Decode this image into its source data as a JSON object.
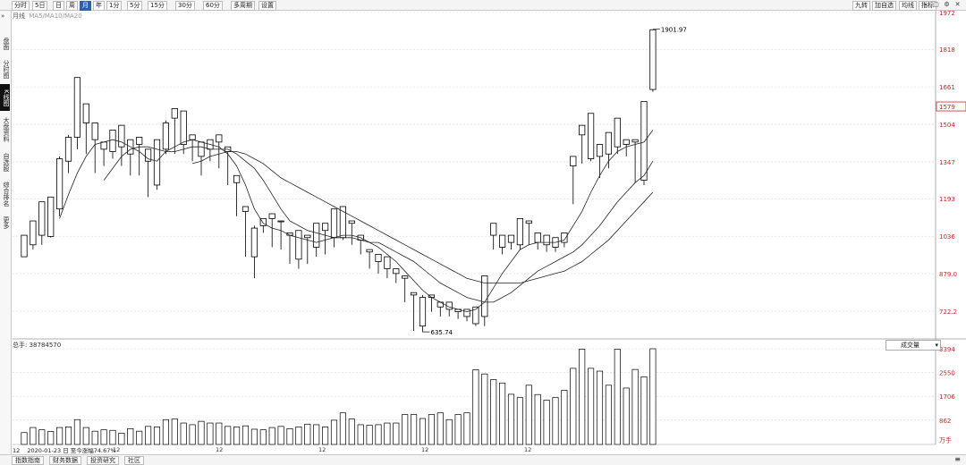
{
  "toolbar": {
    "period_buttons": [
      "分时",
      "5日",
      "日",
      "周",
      "月",
      "年",
      "1分",
      "5分",
      "15分",
      "30分",
      "60分",
      "多周期",
      "设置"
    ],
    "active_period": "月",
    "right_buttons": [
      "九转",
      "加自选",
      "均线",
      "指标"
    ]
  },
  "sidebar": {
    "collapse": "»",
    "items": [
      "盘面",
      "分时图",
      "K线图",
      "大盘资料",
      "自选股",
      "综合排名",
      "更多"
    ],
    "active": "K线图"
  },
  "chart": {
    "title": "月线",
    "ma_label": "MA5/MA10/MA20",
    "price_axis": [
      "1972",
      "1818",
      "1661",
      "1504",
      "1347",
      "1193",
      "1036",
      "879.0",
      "722.2"
    ],
    "current_price": "1579",
    "high_annotation": "1901.97",
    "low_annotation": "635.74",
    "volume_label": "总手: 38784570",
    "volume_axis": [
      "3394",
      "2550",
      "1706",
      "862",
      "万手"
    ],
    "volume_selector": "成交量",
    "x_ticks": [
      "12",
      "12",
      "12",
      "12",
      "12",
      "12"
    ],
    "status_text": "2020-01-23 日 至今涨幅74.67%"
  },
  "bottom_tabs": [
    "指数指南",
    "财务数据",
    "投资研究",
    "社区"
  ],
  "colors": {
    "up": "#ffffff",
    "down": "#000000",
    "grid": "#d6d6d6",
    "accent": "#2b5fb8",
    "price_box": "#c62828"
  },
  "chart_data": {
    "type": "candlestick",
    "title": "",
    "candles": [
      [
        950,
        1040,
        1030,
        975
      ],
      [
        1000,
        1100,
        1050,
        980
      ],
      [
        1040,
        1180,
        1030,
        1000
      ],
      [
        1035,
        1200,
        1150,
        1030
      ],
      [
        1150,
        1360,
        1370,
        1120
      ],
      [
        1350,
        1450,
        1460,
        1300
      ],
      [
        1450,
        1700,
        1500,
        1400
      ],
      [
        1510,
        1590,
        1400,
        1380
      ],
      [
        1440,
        1510,
        1440,
        1300
      ],
      [
        1400,
        1430,
        1380,
        1330
      ],
      [
        1390,
        1480,
        1410,
        1360
      ],
      [
        1410,
        1500,
        1380,
        1330
      ],
      [
        1380,
        1440,
        1420,
        1290
      ],
      [
        1420,
        1450,
        1350,
        1290
      ],
      [
        1350,
        1400,
        1250,
        1200
      ],
      [
        1250,
        1440,
        1350,
        1230
      ],
      [
        1400,
        1510,
        1520,
        1380
      ],
      [
        1530,
        1570,
        1430,
        1380
      ],
      [
        1420,
        1560,
        1540,
        1380
      ],
      [
        1440,
        1460,
        1370,
        1350
      ],
      [
        1370,
        1430,
        1400,
        1290
      ],
      [
        1400,
        1440,
        1380,
        1350
      ],
      [
        1430,
        1460,
        1380,
        1320
      ],
      [
        1390,
        1410,
        1260,
        1250
      ],
      [
        1260,
        1290,
        1140,
        1120
      ],
      [
        1140,
        1160,
        1000,
        950
      ],
      [
        950,
        1070,
        1080,
        860
      ],
      [
        1080,
        1110,
        1100,
        1050
      ],
      [
        1110,
        1130,
        1080,
        990
      ],
      [
        1100,
        1100,
        1020,
        980
      ],
      [
        1040,
        1050,
        930,
        920
      ],
      [
        940,
        1060,
        1040,
        900
      ],
      [
        1030,
        1040,
        960,
        920
      ],
      [
        990,
        1090,
        1060,
        950
      ],
      [
        1060,
        1090,
        1020,
        960
      ],
      [
        1030,
        1150,
        1030,
        990
      ],
      [
        1030,
        1160,
        1090,
        1020
      ],
      [
        1090,
        1100,
        1040,
        1000
      ],
      [
        1020,
        1040,
        980,
        960
      ],
      [
        970,
        980,
        920,
        900
      ],
      [
        930,
        960,
        890,
        880
      ],
      [
        900,
        950,
        870,
        860
      ],
      [
        880,
        900,
        850,
        840
      ],
      [
        860,
        870,
        780,
        760
      ],
      [
        790,
        800,
        650,
        640
      ],
      [
        660,
        780,
        790,
        635
      ],
      [
        780,
        790,
        740,
        720
      ],
      [
        740,
        760,
        730,
        700
      ],
      [
        730,
        760,
        720,
        700
      ],
      [
        720,
        730,
        700,
        690
      ],
      [
        700,
        730,
        690,
        680
      ],
      [
        670,
        740,
        730,
        660
      ],
      [
        700,
        870,
        850,
        660
      ],
      [
        1040,
        1090,
        990,
        980
      ],
      [
        990,
        1040,
        1020,
        960
      ],
      [
        1010,
        1040,
        1000,
        980
      ],
      [
        1000,
        1110,
        1080,
        980
      ],
      [
        1090,
        1100,
        1010,
        1000
      ],
      [
        1010,
        1050,
        1000,
        980
      ],
      [
        1000,
        1040,
        990,
        970
      ],
      [
        990,
        1030,
        1010,
        970
      ],
      [
        1010,
        1050,
        1030,
        990
      ],
      [
        1330,
        1370,
        1180,
        1170
      ],
      [
        1460,
        1500,
        1360,
        1340
      ],
      [
        1360,
        1550,
        1490,
        1350
      ],
      [
        1370,
        1420,
        1400,
        1280
      ],
      [
        1380,
        1470,
        1420,
        1320
      ],
      [
        1410,
        1530,
        1500,
        1380
      ],
      [
        1420,
        1440,
        1400,
        1370
      ],
      [
        1430,
        1440,
        1270,
        1260
      ],
      [
        1270,
        1600,
        1590,
        1250
      ],
      [
        1650,
        1900,
        1760,
        1640
      ]
    ],
    "ma5": [
      null,
      null,
      null,
      null,
      1110,
      1210,
      1300,
      1370,
      1420,
      1430,
      1440,
      1430,
      1410,
      1390,
      1360,
      1350,
      1390,
      1410,
      1430,
      1440,
      1430,
      1420,
      1410,
      1380,
      1330,
      1250,
      1150,
      1090,
      1070,
      1060,
      1040,
      1030,
      1020,
      1010,
      1020,
      1030,
      1040,
      1040,
      1030,
      1010,
      990,
      960,
      930,
      890,
      850,
      810,
      780,
      760,
      740,
      730,
      720,
      730,
      760,
      820,
      880,
      930,
      980,
      1000,
      1010,
      1010,
      1010,
      1020,
      1080,
      1140,
      1220,
      1290,
      1350,
      1390,
      1410,
      1420,
      1430,
      1480
    ],
    "ma10": [
      null,
      null,
      null,
      null,
      null,
      null,
      null,
      null,
      null,
      1270,
      1320,
      1370,
      1400,
      1410,
      1410,
      1400,
      1390,
      1390,
      1400,
      1410,
      1410,
      1400,
      1400,
      1400,
      1380,
      1350,
      1320,
      1270,
      1210,
      1150,
      1100,
      1080,
      1060,
      1050,
      1040,
      1030,
      1030,
      1030,
      1020,
      1010,
      1010,
      990,
      970,
      950,
      930,
      900,
      870,
      840,
      820,
      800,
      780,
      770,
      760,
      760,
      780,
      800,
      830,
      860,
      890,
      910,
      930,
      950,
      970,
      1000,
      1040,
      1080,
      1130,
      1180,
      1220,
      1260,
      1290,
      1350
    ],
    "ma20": [
      null,
      null,
      null,
      null,
      null,
      null,
      null,
      null,
      null,
      null,
      null,
      null,
      null,
      null,
      null,
      null,
      null,
      null,
      null,
      1340,
      1350,
      1370,
      1380,
      1390,
      1390,
      1380,
      1360,
      1340,
      1310,
      1280,
      1260,
      1240,
      1220,
      1200,
      1180,
      1160,
      1140,
      1120,
      1100,
      1080,
      1060,
      1040,
      1020,
      1000,
      980,
      960,
      940,
      920,
      900,
      880,
      860,
      850,
      840,
      840,
      840,
      840,
      840,
      850,
      860,
      870,
      880,
      890,
      910,
      930,
      960,
      990,
      1020,
      1060,
      1100,
      1140,
      1180,
      1220
    ]
  },
  "volume_data": [
    420,
    600,
    520,
    460,
    600,
    620,
    880,
    600,
    470,
    520,
    500,
    400,
    560,
    470,
    640,
    620,
    880,
    900,
    760,
    700,
    820,
    760,
    760,
    640,
    620,
    660,
    540,
    520,
    600,
    640,
    560,
    620,
    720,
    700,
    620,
    860,
    1120,
    900,
    700,
    680,
    700,
    760,
    760,
    1060,
    1060,
    920,
    1060,
    1120,
    880,
    1060,
    1120,
    2650,
    2500,
    2300,
    2180,
    1780,
    1660,
    2100,
    1770,
    1570,
    1660,
    1920,
    2700,
    3380,
    2700,
    2600,
    2100,
    3380,
    2000,
    2660,
    2400,
    3394
  ]
}
